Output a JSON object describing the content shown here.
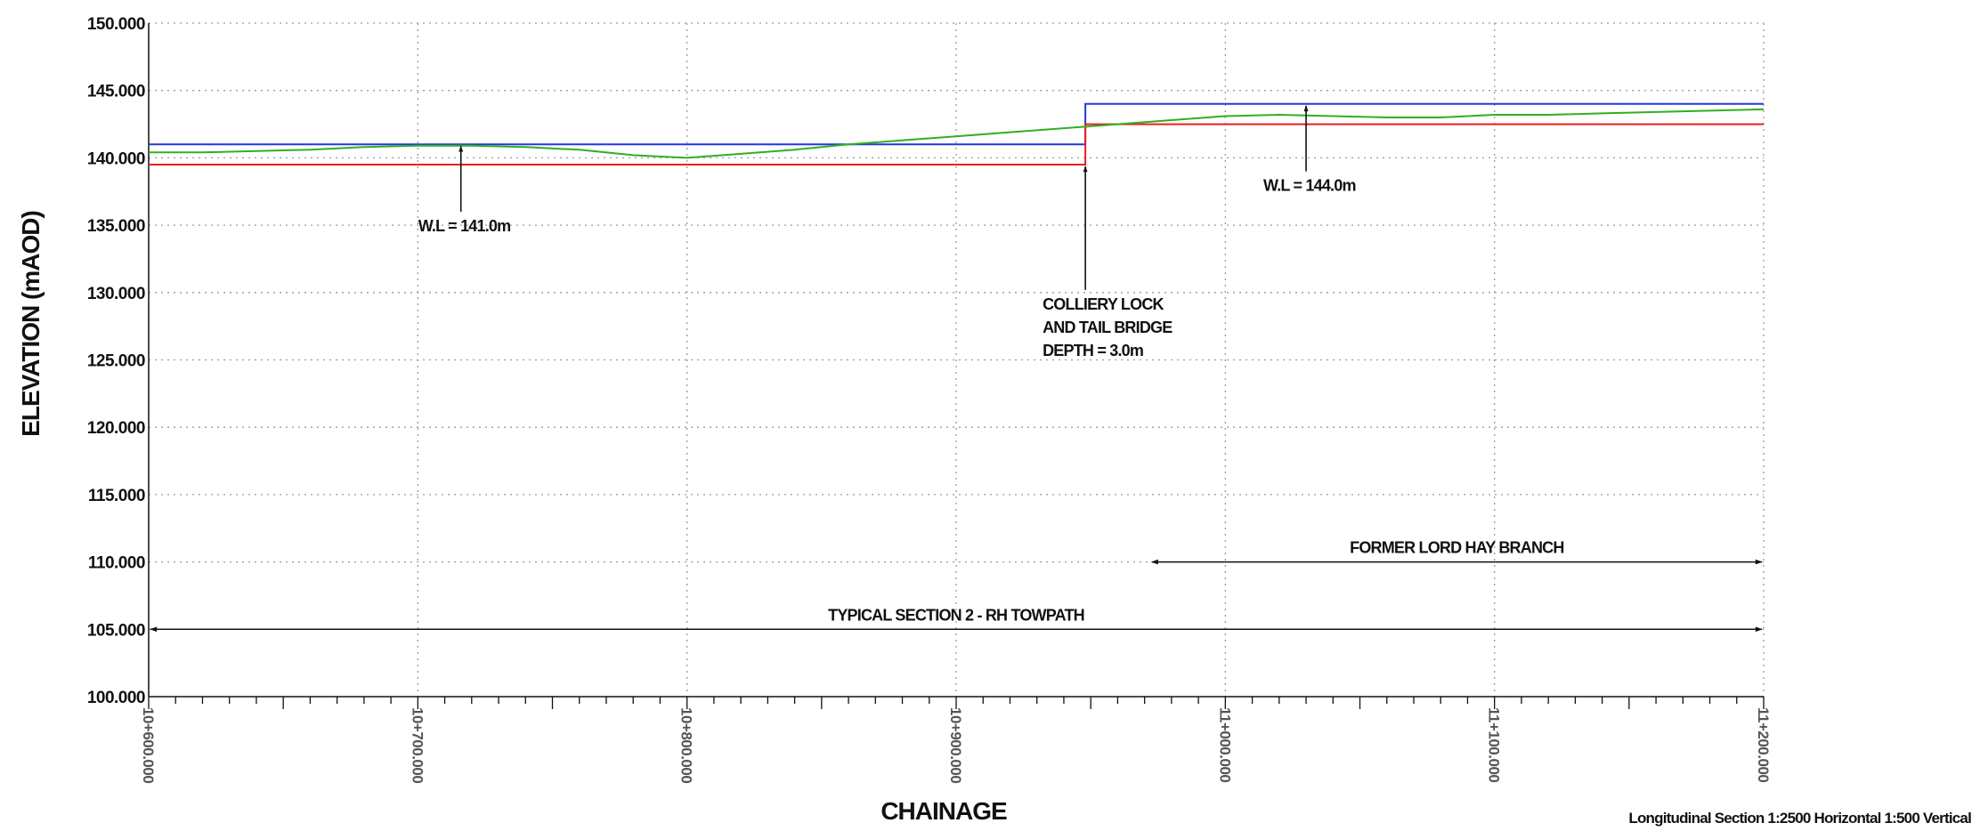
{
  "chart_data": {
    "type": "line",
    "xlabel": "CHAINAGE",
    "ylabel": "ELEVATION (mAOD)",
    "xlim": [
      600,
      1200
    ],
    "ylim": [
      100,
      150
    ],
    "grid": true,
    "y_ticks": [
      {
        "value": 100,
        "label": "100.000"
      },
      {
        "value": 105,
        "label": "105.000"
      },
      {
        "value": 110,
        "label": "110.000"
      },
      {
        "value": 115,
        "label": "115.000"
      },
      {
        "value": 120,
        "label": "120.000"
      },
      {
        "value": 125,
        "label": "125.000"
      },
      {
        "value": 130,
        "label": "130.000"
      },
      {
        "value": 135,
        "label": "135.000"
      },
      {
        "value": 140,
        "label": "140.000"
      },
      {
        "value": 145,
        "label": "145.000"
      },
      {
        "value": 150,
        "label": "150.000"
      }
    ],
    "x_ticks": [
      {
        "value": 600,
        "label": "10+600.000"
      },
      {
        "value": 700,
        "label": "10+700.000"
      },
      {
        "value": 800,
        "label": "10+800.000"
      },
      {
        "value": 900,
        "label": "10+900.000"
      },
      {
        "value": 1000,
        "label": "11+000.000"
      },
      {
        "value": 1100,
        "label": "11+100.000"
      },
      {
        "value": 1200,
        "label": "11+200.000"
      }
    ],
    "series": [
      {
        "color": "#2038e0",
        "points": [
          [
            600,
            141.0
          ],
          [
            948,
            141.0
          ],
          [
            948,
            144.0
          ],
          [
            1200,
            144.0
          ]
        ]
      },
      {
        "color": "#e82020",
        "points": [
          [
            600,
            139.5
          ],
          [
            948,
            139.5
          ],
          [
            948,
            142.5
          ],
          [
            1200,
            142.5
          ]
        ]
      },
      {
        "color": "#30b020",
        "points": [
          [
            600,
            140.4
          ],
          [
            620,
            140.4
          ],
          [
            640,
            140.5
          ],
          [
            660,
            140.6
          ],
          [
            680,
            140.8
          ],
          [
            700,
            140.9
          ],
          [
            720,
            140.9
          ],
          [
            740,
            140.8
          ],
          [
            760,
            140.6
          ],
          [
            780,
            140.2
          ],
          [
            800,
            140.0
          ],
          [
            820,
            140.3
          ],
          [
            840,
            140.6
          ],
          [
            860,
            141.0
          ],
          [
            880,
            141.3
          ],
          [
            900,
            141.6
          ],
          [
            920,
            141.9
          ],
          [
            940,
            142.2
          ],
          [
            960,
            142.5
          ],
          [
            980,
            142.8
          ],
          [
            1000,
            143.1
          ],
          [
            1020,
            143.2
          ],
          [
            1040,
            143.1
          ],
          [
            1060,
            143.0
          ],
          [
            1080,
            143.0
          ],
          [
            1100,
            143.2
          ],
          [
            1120,
            143.2
          ],
          [
            1140,
            143.3
          ],
          [
            1160,
            143.4
          ],
          [
            1180,
            143.5
          ],
          [
            1200,
            143.6
          ]
        ]
      }
    ],
    "annotations": [
      {
        "id": "wl1",
        "lines": [
          "W.L = 141.0m"
        ],
        "x": 716,
        "arrow_from": 136,
        "arrow_to": 141
      },
      {
        "id": "lock",
        "lines": [
          "COLLIERY LOCK",
          "AND TAIL BRIDGE",
          "DEPTH = 3.0m"
        ],
        "x": 948,
        "arrow_from": 130.2,
        "arrow_to": 139.5
      },
      {
        "id": "wl2",
        "lines": [
          "W.L = 144.0m"
        ],
        "x": 1030,
        "arrow_from": 139,
        "arrow_to": 144
      }
    ],
    "spans": [
      {
        "id": "former-lord-hay",
        "label": "FORMER LORD HAY BRANCH",
        "x_from": 972,
        "x_to": 1200,
        "y": 110
      },
      {
        "id": "typical-section",
        "label": "TYPICAL SECTION 2 - RH TOWPATH",
        "x_from": 600,
        "x_to": 1200,
        "y": 105
      }
    ]
  },
  "footer": {
    "scale_note": "Longitudinal Section 1:2500 Horizontal 1:500 Vertical"
  }
}
